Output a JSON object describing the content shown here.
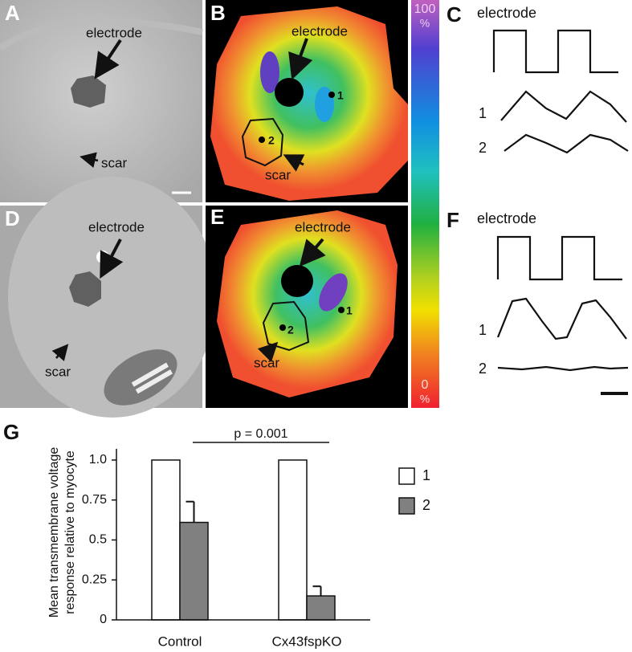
{
  "panels": {
    "A": {
      "label": "A",
      "electrode": "electrode",
      "scar": "scar"
    },
    "B": {
      "label": "B",
      "electrode": "electrode",
      "scar": "scar",
      "point1": "1",
      "point2": "2"
    },
    "C": {
      "label": "C",
      "electrode": "electrode",
      "trace1": "1",
      "trace2": "2"
    },
    "D": {
      "label": "D",
      "electrode": "electrode",
      "scar": "scar"
    },
    "E": {
      "label": "E",
      "electrode": "electrode",
      "scar": "scar",
      "point1": "1",
      "point2": "2"
    },
    "F": {
      "label": "F",
      "electrode": "electrode",
      "trace1": "1",
      "trace2": "2"
    }
  },
  "colorbar": {
    "top": "100",
    "top_unit": "%",
    "bottom": "0",
    "bottom_unit": "%"
  },
  "chart_data": {
    "type": "bar",
    "panel_label": "G",
    "y_label": [
      "Mean transmembrane voltage",
      "response relative to myocyte"
    ],
    "categories": [
      "Control",
      "Cx43fspKO"
    ],
    "series": [
      {
        "name": "1",
        "color": "#ffffff",
        "values": [
          1,
          1
        ]
      },
      {
        "name": "2",
        "color": "#808080",
        "values": [
          0.61,
          0.15
        ],
        "errors": [
          0.13,
          0.06
        ]
      }
    ],
    "ylim": [
      0,
      1.07
    ],
    "yticks": [
      0,
      0.25,
      0.5,
      0.75,
      {
        "value": 1,
        "label": "1.0"
      }
    ],
    "annotation": "p = 0.001"
  }
}
